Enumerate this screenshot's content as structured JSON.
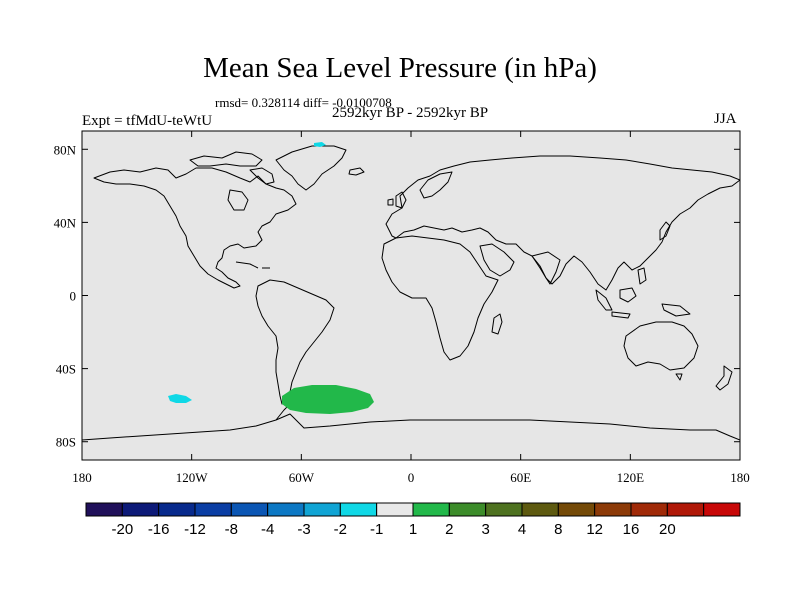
{
  "title": "Mean Sea Level Pressure (in hPa)",
  "stats_line": "rmsd= 0.328114 diff= -0.0100708",
  "period": "2592kyr BP - 2592kyr BP",
  "experiment": "Expt = tfMdU-teWtU",
  "season": "JJA",
  "map": {
    "ocean_color": "#e6e6e6",
    "lat_range": [
      -90,
      90
    ],
    "lon_range": [
      -180,
      180
    ],
    "y_ticks": [
      {
        "lat": 80,
        "label": "80N"
      },
      {
        "lat": 40,
        "label": "40N"
      },
      {
        "lat": 0,
        "label": "0"
      },
      {
        "lat": -40,
        "label": "40S"
      },
      {
        "lat": -80,
        "label": "80S"
      }
    ],
    "x_ticks": [
      {
        "lon": -180,
        "label": "180"
      },
      {
        "lon": -120,
        "label": "120W"
      },
      {
        "lon": -60,
        "label": "60W"
      },
      {
        "lon": 0,
        "label": "0"
      },
      {
        "lon": 60,
        "label": "60E"
      },
      {
        "lon": 120,
        "label": "120E"
      },
      {
        "lon": 180,
        "label": "180"
      }
    ]
  },
  "colorbar": {
    "colors": [
      "#20105a",
      "#0d1a78",
      "#082a8c",
      "#0a3ea4",
      "#0b56b4",
      "#0c78c4",
      "#10a4d4",
      "#10d8e6",
      "#e8e8e8",
      "#22b84a",
      "#3c8c2a",
      "#4e7220",
      "#5e5a10",
      "#744a08",
      "#8c3a08",
      "#a02a08",
      "#b01808",
      "#c80808"
    ],
    "labels": [
      "-20",
      "-16",
      "-12",
      "-8",
      "-4",
      "-3",
      "-2",
      "-1",
      "1",
      "2",
      "3",
      "4",
      "8",
      "12",
      "16",
      "20"
    ]
  },
  "anomalies": [
    {
      "name": "south-atlantic-positive-anomaly",
      "color": "#22b84a"
    },
    {
      "name": "south-pacific-negative-anomaly",
      "color": "#10d8e6"
    },
    {
      "name": "greenland-negative-anomaly",
      "color": "#10d8e6"
    }
  ]
}
